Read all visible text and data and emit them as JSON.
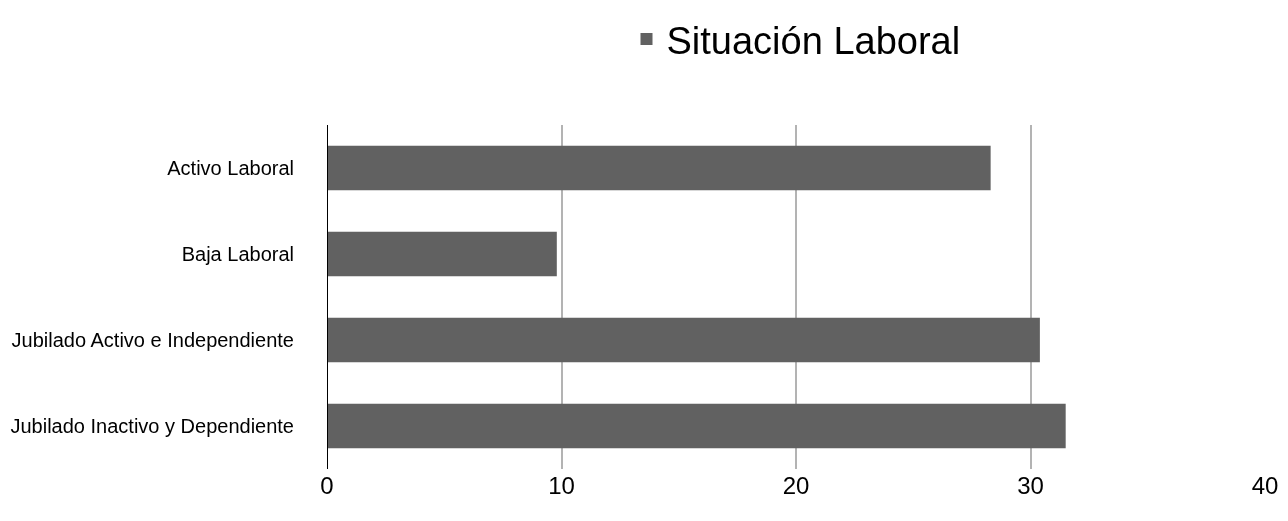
{
  "chart_data": {
    "type": "bar",
    "orientation": "horizontal",
    "categories": [
      "Activo Laboral",
      "Baja Laboral",
      "Jubilado Activo e Independiente",
      "Jubilado Inactivo y Dependiente"
    ],
    "series": [
      {
        "name": "Situación Laboral",
        "color": "#616161",
        "values": [
          28.3,
          9.8,
          30.4,
          31.5
        ]
      }
    ],
    "xlim": [
      0,
      40
    ],
    "xticks": [
      0,
      10,
      20,
      30,
      40
    ],
    "grid": "x",
    "legend": "top"
  }
}
